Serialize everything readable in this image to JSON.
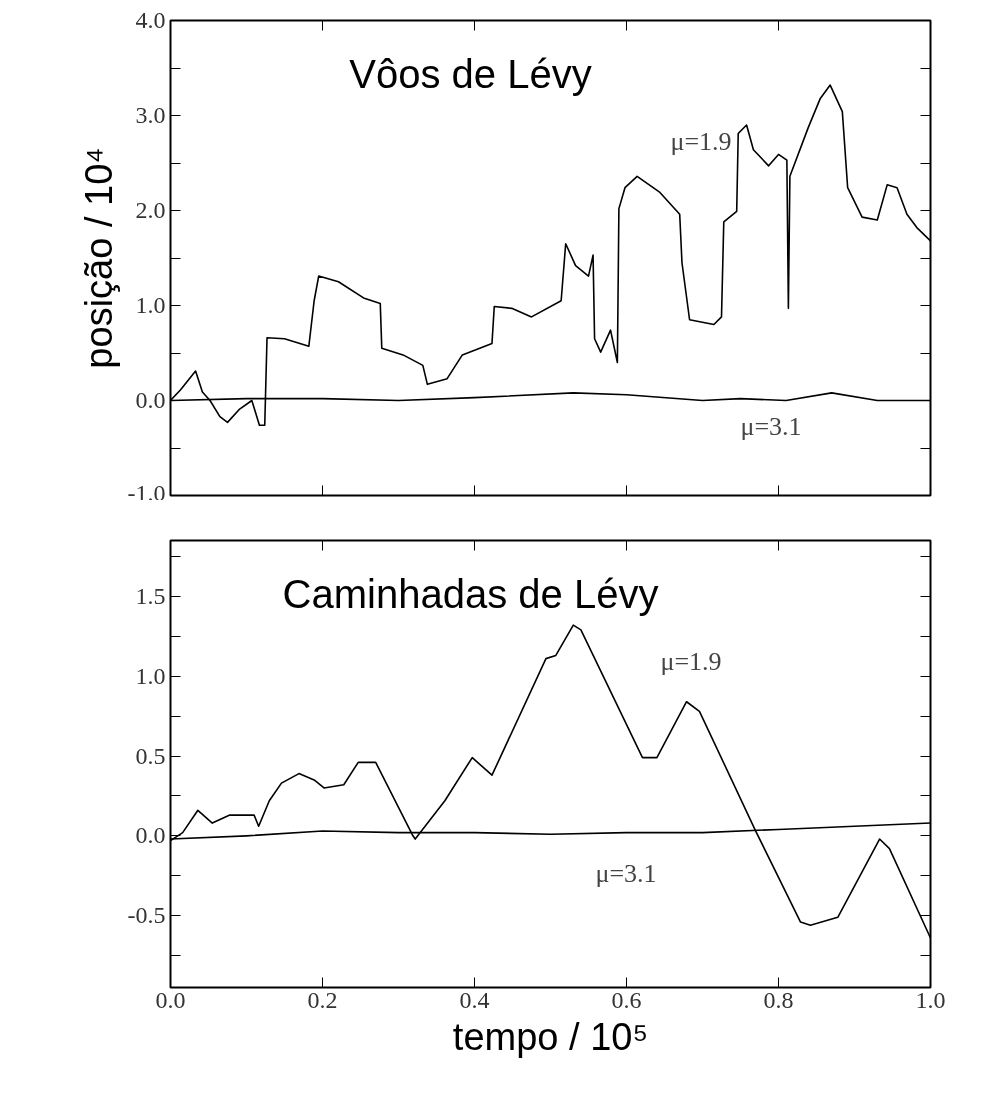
{
  "chart_data": [
    {
      "type": "line",
      "title": "Vôos de Lévy",
      "ylabel": "posição / 10⁴",
      "xlim": [
        0,
        1
      ],
      "ylim": [
        -1,
        4
      ],
      "xticks": [
        {
          "value": 0.2,
          "label": null
        },
        {
          "value": 0.4,
          "label": null
        },
        {
          "value": 0.6,
          "label": null
        },
        {
          "value": 0.8,
          "label": null
        }
      ],
      "yticks": [
        {
          "value": -1,
          "label": "-1.0"
        },
        {
          "value": -0.5,
          "label": null
        },
        {
          "value": 0,
          "label": "0.0"
        },
        {
          "value": 0.5,
          "label": null
        },
        {
          "value": 1,
          "label": "1.0"
        },
        {
          "value": 1.5,
          "label": null
        },
        {
          "value": 2,
          "label": "2.0"
        },
        {
          "value": 2.5,
          "label": null
        },
        {
          "value": 3,
          "label": "3.0"
        },
        {
          "value": 3.5,
          "label": null
        },
        {
          "value": 4,
          "label": "4.0"
        }
      ],
      "tick_labels": "y",
      "line_style": "solid",
      "marker": "none",
      "series": [
        {
          "color": "#000000",
          "x": [
            0,
            0.013,
            0.033,
            0.042,
            0.052,
            0.065,
            0.075,
            0.091,
            0.107,
            0.117,
            0.124,
            0.127,
            0.15,
            0.182,
            0.189,
            0.195,
            0.221,
            0.254,
            0.276,
            0.278,
            0.306,
            0.332,
            0.338,
            0.364,
            0.384,
            0.423,
            0.426,
            0.449,
            0.475,
            0.514,
            0.52,
            0.533,
            0.55,
            0.556,
            0.558,
            0.566,
            0.579,
            0.588,
            0.59,
            0.598,
            0.614,
            0.644,
            0.67,
            0.673,
            0.683,
            0.715,
            0.725,
            0.728,
            0.745,
            0.747,
            0.758,
            0.767,
            0.787,
            0.8,
            0.811,
            0.813,
            0.815,
            0.839,
            0.855,
            0.868,
            0.884,
            0.891,
            0.91,
            0.93,
            0.943,
            0.956,
            0.969,
            0.982,
            1.0
          ],
          "values": [
            0,
            0.11,
            0.31,
            0.09,
            0,
            -0.17,
            -0.23,
            -0.09,
            0,
            -0.26,
            -0.26,
            0.66,
            0.65,
            0.57,
            1.05,
            1.31,
            1.25,
            1.08,
            1.02,
            0.55,
            0.48,
            0.37,
            0.17,
            0.23,
            0.48,
            0.6,
            0.99,
            0.97,
            0.88,
            1.05,
            1.65,
            1.42,
            1.31,
            1.53,
            0.65,
            0.51,
            0.74,
            0.4,
            2.02,
            2.24,
            2.36,
            2.19,
            1.96,
            1.45,
            0.85,
            0.8,
            0.88,
            1.88,
            1.99,
            2.81,
            2.9,
            2.64,
            2.47,
            2.59,
            2.53,
            0.97,
            2.36,
            2.87,
            3.18,
            3.32,
            3.04,
            2.24,
            1.93,
            1.9,
            2.27,
            2.24,
            1.96,
            1.82,
            1.68
          ]
        },
        {
          "color": "#000000",
          "x": [
            0,
            0.1,
            0.2,
            0.3,
            0.4,
            0.53,
            0.6,
            0.7,
            0.75,
            0.81,
            0.87,
            0.93,
            1.0
          ],
          "values": [
            0,
            0.02,
            0.02,
            0,
            0.03,
            0.08,
            0.06,
            0,
            0.02,
            0,
            0.08,
            0,
            0
          ]
        }
      ],
      "annotations": [
        "μ=1.9",
        "μ=3.1"
      ]
    },
    {
      "type": "line",
      "title": "Caminhadas de Lévy",
      "xlabel": "tempo / 10⁵",
      "xlim": [
        0,
        1
      ],
      "ylim": [
        -0.95,
        1.85
      ],
      "xticks": [
        {
          "value": 0,
          "label": "0.0"
        },
        {
          "value": 0.2,
          "label": "0.2"
        },
        {
          "value": 0.4,
          "label": "0.4"
        },
        {
          "value": 0.6,
          "label": "0.6"
        },
        {
          "value": 0.8,
          "label": "0.8"
        },
        {
          "value": 1,
          "label": "1.0"
        }
      ],
      "yticks": [
        {
          "value": -0.75,
          "label": null
        },
        {
          "value": -0.5,
          "label": "-0.5"
        },
        {
          "value": -0.25,
          "label": null
        },
        {
          "value": 0,
          "label": "0.0"
        },
        {
          "value": 0.25,
          "label": null
        },
        {
          "value": 0.5,
          "label": "0.5"
        },
        {
          "value": 0.75,
          "label": null
        },
        {
          "value": 1,
          "label": "1.0"
        },
        {
          "value": 1.25,
          "label": null
        },
        {
          "value": 1.5,
          "label": "1.5"
        },
        {
          "value": 1.75,
          "label": null
        }
      ],
      "line_style": "solid",
      "marker": "none",
      "series": [
        {
          "color": "#000000",
          "x": [
            0,
            0.016,
            0.036,
            0.055,
            0.078,
            0.11,
            0.116,
            0.13,
            0.146,
            0.169,
            0.189,
            0.202,
            0.228,
            0.247,
            0.27,
            0.319,
            0.322,
            0.361,
            0.397,
            0.423,
            0.494,
            0.507,
            0.53,
            0.54,
            0.621,
            0.64,
            0.679,
            0.696,
            0.77,
            0.829,
            0.842,
            0.878,
            0.933,
            0.946,
            1.0
          ],
          "values": [
            -0.03,
            0.02,
            0.16,
            0.08,
            0.13,
            0.13,
            0.06,
            0.22,
            0.33,
            0.39,
            0.35,
            0.3,
            0.32,
            0.46,
            0.46,
            0,
            -0.02,
            0.22,
            0.49,
            0.38,
            1.11,
            1.13,
            1.32,
            1.29,
            0.49,
            0.49,
            0.84,
            0.78,
            0.03,
            -0.54,
            -0.56,
            -0.51,
            -0.02,
            -0.08,
            -0.64
          ]
        },
        {
          "color": "#000000",
          "x": [
            0,
            0.1,
            0.2,
            0.3,
            0.4,
            0.5,
            0.6,
            0.7,
            0.8,
            0.9,
            1.0
          ],
          "values": [
            -0.02,
            0,
            0.03,
            0.02,
            0.02,
            0.01,
            0.02,
            0.02,
            0.04,
            0.06,
            0.08
          ]
        }
      ],
      "annotations": [
        "μ=1.9",
        "μ=3.1"
      ]
    }
  ]
}
